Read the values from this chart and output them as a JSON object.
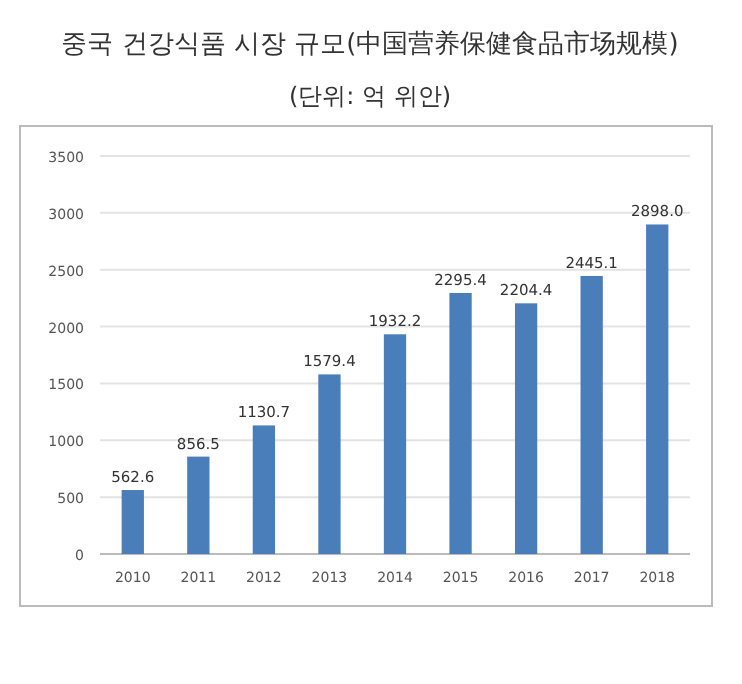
{
  "chart_data": {
    "type": "bar",
    "title": "중국 건강식품 시장 규모(中国营养保健食品市场规模)",
    "subtitle": "(단위: 억 위안)",
    "categories": [
      "2010",
      "2011",
      "2012",
      "2013",
      "2014",
      "2015",
      "2016",
      "2017",
      "2018"
    ],
    "values": [
      562.6,
      856.5,
      1130.7,
      1579.4,
      1932.2,
      2295.4,
      2204.4,
      2445.1,
      2898.0
    ],
    "value_labels": [
      "562.6",
      "856.5",
      "1130.7",
      "1579.4",
      "1932.2",
      "2295.4",
      "2204.4",
      "2445.1",
      "2898.0"
    ],
    "color": "#4a7ebb",
    "ylim": [
      0,
      3500
    ],
    "yticks": [
      0,
      500,
      1000,
      1500,
      2000,
      2500,
      3000,
      3500
    ],
    "grid": "y"
  }
}
